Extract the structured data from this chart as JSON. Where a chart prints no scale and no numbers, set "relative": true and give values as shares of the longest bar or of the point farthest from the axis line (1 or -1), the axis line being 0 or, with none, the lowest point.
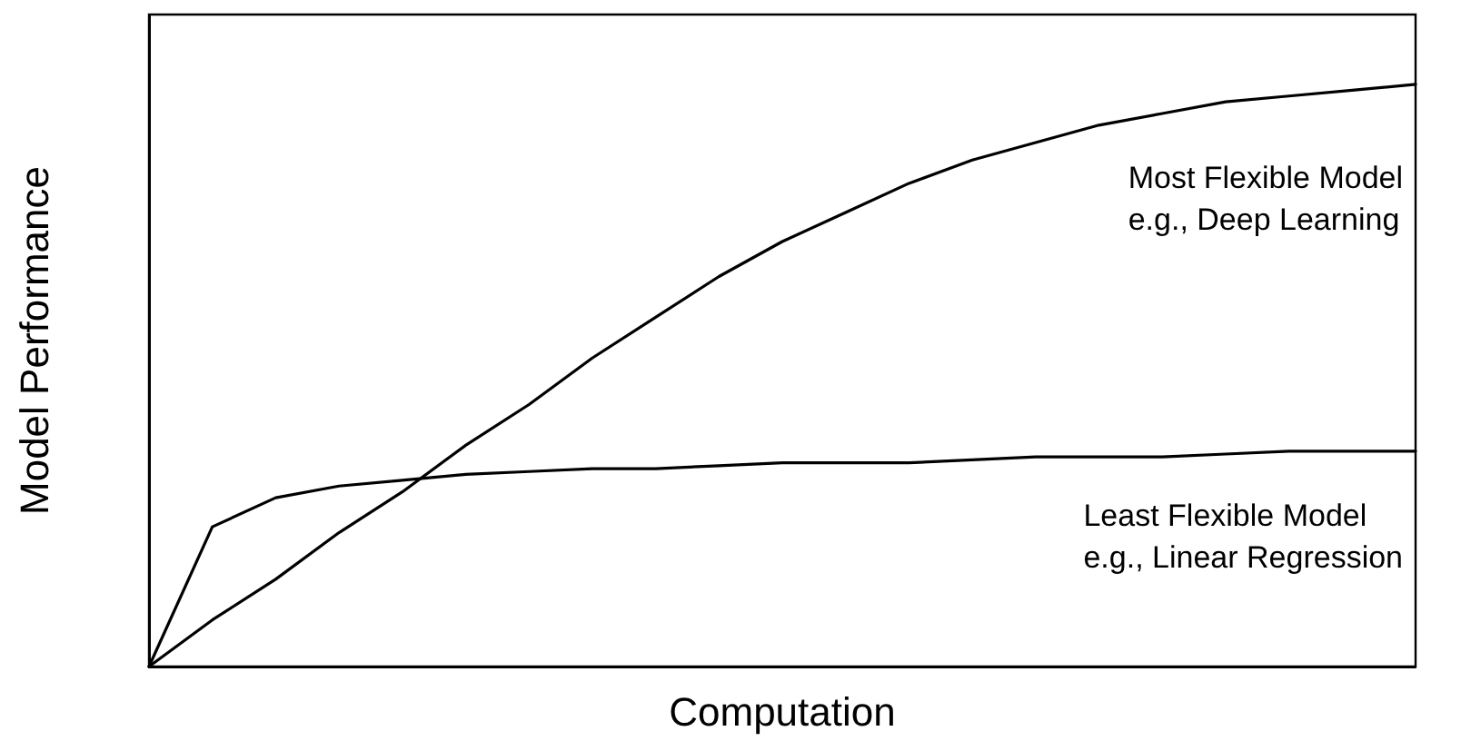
{
  "chart_data": {
    "type": "line",
    "relative": true,
    "xlabel": "Computation",
    "ylabel": "Model Performance",
    "categories": [
      null,
      null,
      null,
      null,
      null,
      null,
      null,
      null,
      null,
      null,
      null,
      null,
      null,
      null,
      null,
      null,
      null,
      null,
      null,
      null,
      null
    ],
    "series": [
      {
        "name": "Most Flexible Model\ne.g., Deep Learning",
        "color": "#000000",
        "values": [
          0,
          0.08,
          0.15,
          0.23,
          0.3,
          0.38,
          0.45,
          0.53,
          0.6,
          0.67,
          0.73,
          0.78,
          0.83,
          0.87,
          0.9,
          0.93,
          0.95,
          0.97,
          0.98,
          0.99,
          1
        ]
      },
      {
        "name": "Least Flexible Model\ne.g., Linear Regression",
        "color": "#000000",
        "values": [
          0,
          0.24,
          0.29,
          0.31,
          0.32,
          0.33,
          0.335,
          0.34,
          0.34,
          0.345,
          0.35,
          0.35,
          0.35,
          0.355,
          0.36,
          0.36,
          0.36,
          0.365,
          0.37,
          0.37,
          0.37
        ]
      }
    ],
    "marker": "none",
    "line_style": "solid",
    "legend": false
  }
}
